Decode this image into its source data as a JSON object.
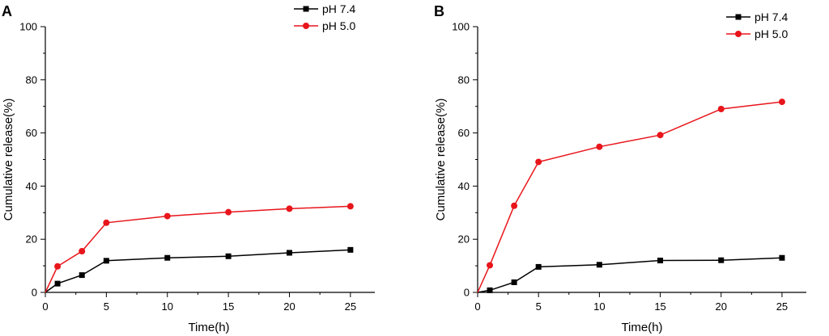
{
  "chart_data": [
    {
      "type": "line",
      "panel": "A",
      "xlabel": "Time(h)",
      "ylabel": "Cumulative release(%)",
      "xlim": [
        0,
        27
      ],
      "ylim": [
        0,
        100
      ],
      "xticks": [
        0,
        5,
        10,
        15,
        20,
        25
      ],
      "yticks": [
        0,
        20,
        40,
        60,
        80,
        100
      ],
      "minor_xticks": [
        2.5,
        7.5,
        12.5,
        17.5,
        22.5
      ],
      "minor_yticks": [
        10,
        30,
        50,
        70,
        90
      ],
      "legend_position": "top-right",
      "series": [
        {
          "name": "pH 7.4",
          "color": "#000000",
          "marker": "square",
          "x": [
            0,
            1,
            3,
            5,
            10,
            15,
            20,
            25
          ],
          "values": [
            0,
            3.3,
            6.5,
            11.9,
            13.0,
            13.6,
            14.9,
            16.0
          ]
        },
        {
          "name": "pH 5.0",
          "color": "#e8151b",
          "marker": "circle",
          "x": [
            0,
            1,
            3,
            5,
            10,
            15,
            20,
            25
          ],
          "values": [
            0,
            9.8,
            15.5,
            26.2,
            28.7,
            30.2,
            31.5,
            32.4
          ]
        }
      ]
    },
    {
      "type": "line",
      "panel": "B",
      "xlabel": "Time(h)",
      "ylabel": "Cumulative release(%)",
      "xlim": [
        0,
        27
      ],
      "ylim": [
        0,
        100
      ],
      "xticks": [
        0,
        5,
        10,
        15,
        20,
        25
      ],
      "yticks": [
        0,
        20,
        40,
        60,
        80,
        100
      ],
      "minor_xticks": [
        2.5,
        7.5,
        12.5,
        17.5,
        22.5
      ],
      "minor_yticks": [
        10,
        30,
        50,
        70,
        90
      ],
      "legend_position": "top-right",
      "series": [
        {
          "name": "pH 7.4",
          "color": "#000000",
          "marker": "square",
          "x": [
            0,
            1,
            3,
            5,
            10,
            15,
            20,
            25
          ],
          "values": [
            0,
            0.8,
            3.8,
            9.6,
            10.4,
            12.0,
            12.1,
            13.0
          ]
        },
        {
          "name": "pH 5.0",
          "color": "#e8151b",
          "marker": "circle",
          "x": [
            0,
            1,
            3,
            5,
            10,
            15,
            20,
            25
          ],
          "values": [
            0,
            10.2,
            32.6,
            49.1,
            54.8,
            59.2,
            69.0,
            71.7
          ]
        }
      ]
    }
  ]
}
